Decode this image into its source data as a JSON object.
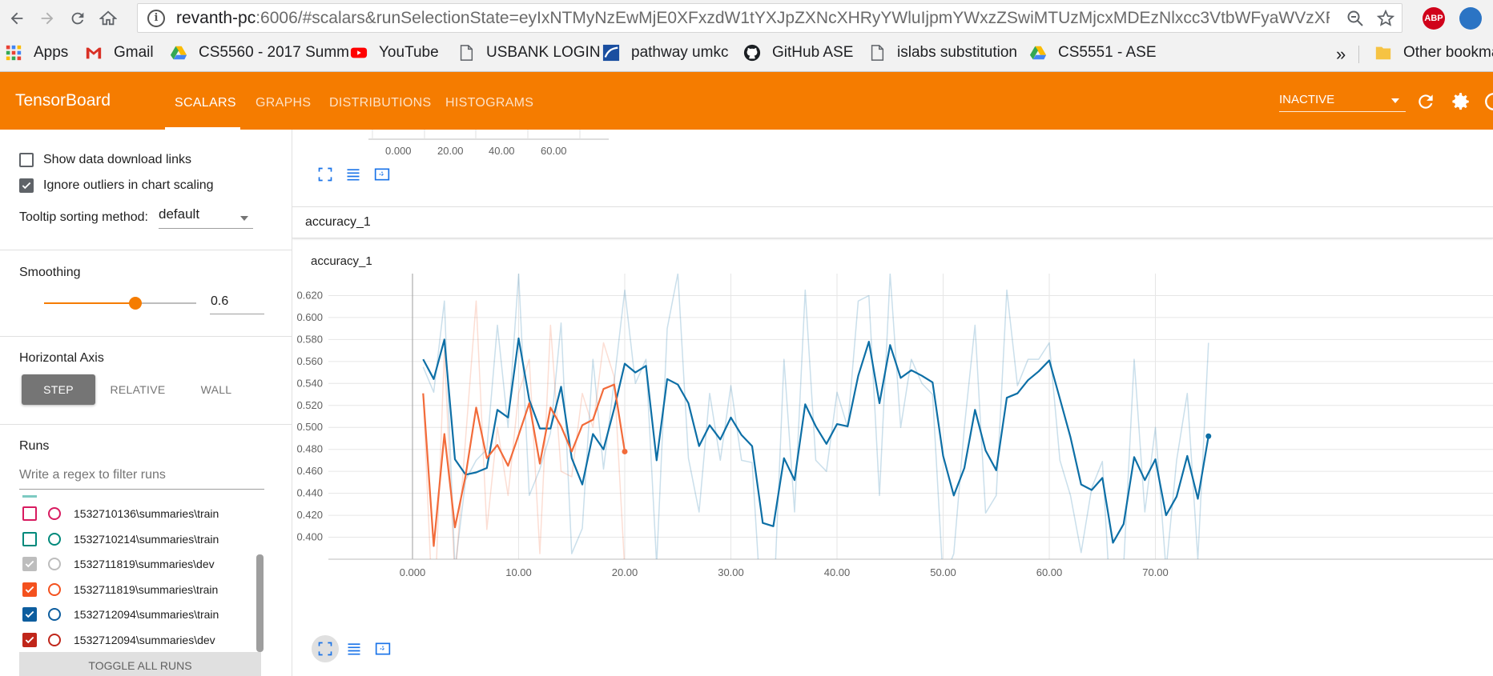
{
  "browser": {
    "url_host": "revanth-pc",
    "url_rest": ":6006/#scalars&runSelectionState=eyIxNTMyNzEwMjE0XFxzdW1tYXJpZXNcXHRyYWluIjpmYWxzZSwiMTUzMjcxMDEzNlxcc3VtbWFyaWVzXFx0cmF..."
  },
  "bookmarks": [
    {
      "label": "Apps",
      "icon": "apps-grid-icon"
    },
    {
      "label": "Gmail",
      "icon": "gmail-icon"
    },
    {
      "label": "CS5560 - 2017 Summ",
      "icon": "google-drive-icon"
    },
    {
      "label": "YouTube",
      "icon": "youtube-icon"
    },
    {
      "label": "USBANK LOGIN",
      "icon": "page-icon"
    },
    {
      "label": "pathway umkc",
      "icon": "pathway-icon"
    },
    {
      "label": "GitHub ASE",
      "icon": "github-icon"
    },
    {
      "label": "islabs substitution",
      "icon": "page-icon"
    },
    {
      "label": "CS5551 - ASE",
      "icon": "google-drive-icon"
    },
    {
      "label": "»",
      "icon": ""
    },
    {
      "label": "Other bookma",
      "icon": "folder-icon"
    }
  ],
  "toolbar": {
    "brand": "TensorBoard",
    "tabs": [
      "SCALARS",
      "GRAPHS",
      "DISTRIBUTIONS",
      "HISTOGRAMS"
    ],
    "active_tab": "SCALARS",
    "status_select": "INACTIVE"
  },
  "sidebar": {
    "show_download": "Show data download links",
    "show_download_checked": false,
    "ignore_outliers": "Ignore outliers in chart scaling",
    "ignore_outliers_checked": true,
    "tooltip_label": "Tooltip sorting method:",
    "tooltip_value": "default",
    "smoothing_label": "Smoothing",
    "smoothing_value": "0.6",
    "haxis_label": "Horizontal Axis",
    "haxis_options": [
      "STEP",
      "RELATIVE",
      "WALL"
    ],
    "haxis_selected": "STEP",
    "runs_label": "Runs",
    "runs_filter_placeholder": "Write a regex to filter runs",
    "runs": [
      {
        "name": "1532710136\\summaries\\train",
        "checked": false,
        "color": "#d81b60"
      },
      {
        "name": "1532710214\\summaries\\train",
        "checked": false,
        "color": "#00897b"
      },
      {
        "name": "1532711819\\summaries\\dev",
        "checked": true,
        "color": "#bdbdbd"
      },
      {
        "name": "1532711819\\summaries\\train",
        "checked": true,
        "color": "#f4511e"
      },
      {
        "name": "1532712094\\summaries\\train",
        "checked": true,
        "color": "#0d5d9e"
      },
      {
        "name": "1532712094\\summaries\\dev",
        "checked": true,
        "color": "#c0261a"
      }
    ],
    "toggle_all": "TOGGLE ALL RUNS"
  },
  "main": {
    "prev_ticks": [
      "0.000",
      "20.00",
      "40.00",
      "60.00"
    ],
    "category": "accuracy_1",
    "card_title": "accuracy_1"
  },
  "colors": {
    "accent": "#f57c00",
    "blue_series": "#0d6fa6",
    "orange_series": "#f26b3a"
  },
  "chart_data": {
    "type": "line",
    "title": "accuracy_1",
    "xlim": [
      0,
      80
    ],
    "ylim": [
      0.38,
      0.64
    ],
    "x_ticks": [
      "0.000",
      "10.00",
      "20.00",
      "30.00",
      "40.00",
      "50.00",
      "60.00",
      "70.00"
    ],
    "y_ticks": [
      "0.400",
      "0.420",
      "0.440",
      "0.460",
      "0.480",
      "0.500",
      "0.520",
      "0.540",
      "0.560",
      "0.580",
      "0.600",
      "0.620"
    ],
    "grid": true,
    "series": [
      {
        "run": "1532712094\\summaries\\train",
        "color": "#0d6fa6",
        "x": [
          1,
          2,
          3,
          4,
          5,
          6,
          7,
          8,
          9,
          10,
          11,
          12,
          13,
          14,
          15,
          16,
          17,
          18,
          19,
          20,
          21,
          22,
          23,
          24,
          25,
          26,
          27,
          28,
          29,
          30,
          31,
          32,
          33,
          34,
          35,
          36,
          37,
          38,
          39,
          40,
          41,
          42,
          43,
          44,
          45,
          46,
          47,
          48,
          49,
          50,
          51,
          52,
          53,
          54,
          55,
          56,
          57,
          58,
          59,
          60,
          61,
          62,
          63,
          64,
          65,
          66,
          67,
          68,
          69,
          70,
          71,
          72,
          73,
          74,
          75
        ],
        "smoothed": [
          0.562,
          0.544,
          0.58,
          0.471,
          0.457,
          0.459,
          0.463,
          0.516,
          0.509,
          0.581,
          0.525,
          0.499,
          0.499,
          0.537,
          0.472,
          0.448,
          0.494,
          0.48,
          0.517,
          0.558,
          0.55,
          0.556,
          0.47,
          0.544,
          0.539,
          0.522,
          0.483,
          0.502,
          0.489,
          0.509,
          0.493,
          0.483,
          0.413,
          0.41,
          0.472,
          0.452,
          0.521,
          0.501,
          0.485,
          0.503,
          0.501,
          0.547,
          0.578,
          0.522,
          0.575,
          0.545,
          0.552,
          0.547,
          0.541,
          0.474,
          0.438,
          0.463,
          0.516,
          0.479,
          0.461,
          0.527,
          0.531,
          0.543,
          0.551,
          0.561,
          0.526,
          0.491,
          0.448,
          0.443,
          0.454,
          0.395,
          0.412,
          0.473,
          0.452,
          0.471,
          0.42,
          0.437,
          0.474,
          0.435,
          0.492
        ],
        "raw": [
          0.555,
          0.532,
          0.615,
          0.371,
          0.452,
          0.47,
          0.48,
          0.593,
          0.5,
          0.64,
          0.438,
          0.462,
          0.495,
          0.595,
          0.385,
          0.408,
          0.562,
          0.462,
          0.542,
          0.625,
          0.54,
          0.562,
          0.375,
          0.59,
          0.64,
          0.472,
          0.423,
          0.531,
          0.47,
          0.538,
          0.47,
          0.468,
          0.312,
          0.33,
          0.562,
          0.423,
          0.625,
          0.47,
          0.46,
          0.532,
          0.5,
          0.615,
          0.62,
          0.438,
          0.64,
          0.5,
          0.562,
          0.54,
          0.53,
          0.36,
          0.385,
          0.5,
          0.593,
          0.422,
          0.438,
          0.625,
          0.538,
          0.562,
          0.562,
          0.577,
          0.47,
          0.438,
          0.386,
          0.445,
          0.469,
          0.3,
          0.373,
          0.562,
          0.423,
          0.5,
          0.37,
          0.47,
          0.531,
          0.38,
          0.577
        ]
      },
      {
        "run": "1532711819\\summaries\\train",
        "color": "#f26b3a",
        "x": [
          1,
          2,
          3,
          4,
          5,
          6,
          7,
          8,
          9,
          10,
          11,
          12,
          13,
          14,
          15,
          16,
          17,
          18,
          19,
          20
        ],
        "smoothed": [
          0.531,
          0.392,
          0.494,
          0.409,
          0.456,
          0.518,
          0.472,
          0.484,
          0.465,
          0.493,
          0.522,
          0.467,
          0.518,
          0.501,
          0.478,
          0.502,
          0.507,
          0.535,
          0.539,
          0.478
        ],
        "raw": [
          0.531,
          0.31,
          0.57,
          0.36,
          0.49,
          0.615,
          0.407,
          0.5,
          0.438,
          0.531,
          0.562,
          0.385,
          0.593,
          0.46,
          0.455,
          0.531,
          0.5,
          0.577,
          0.546,
          0.37
        ]
      }
    ]
  }
}
